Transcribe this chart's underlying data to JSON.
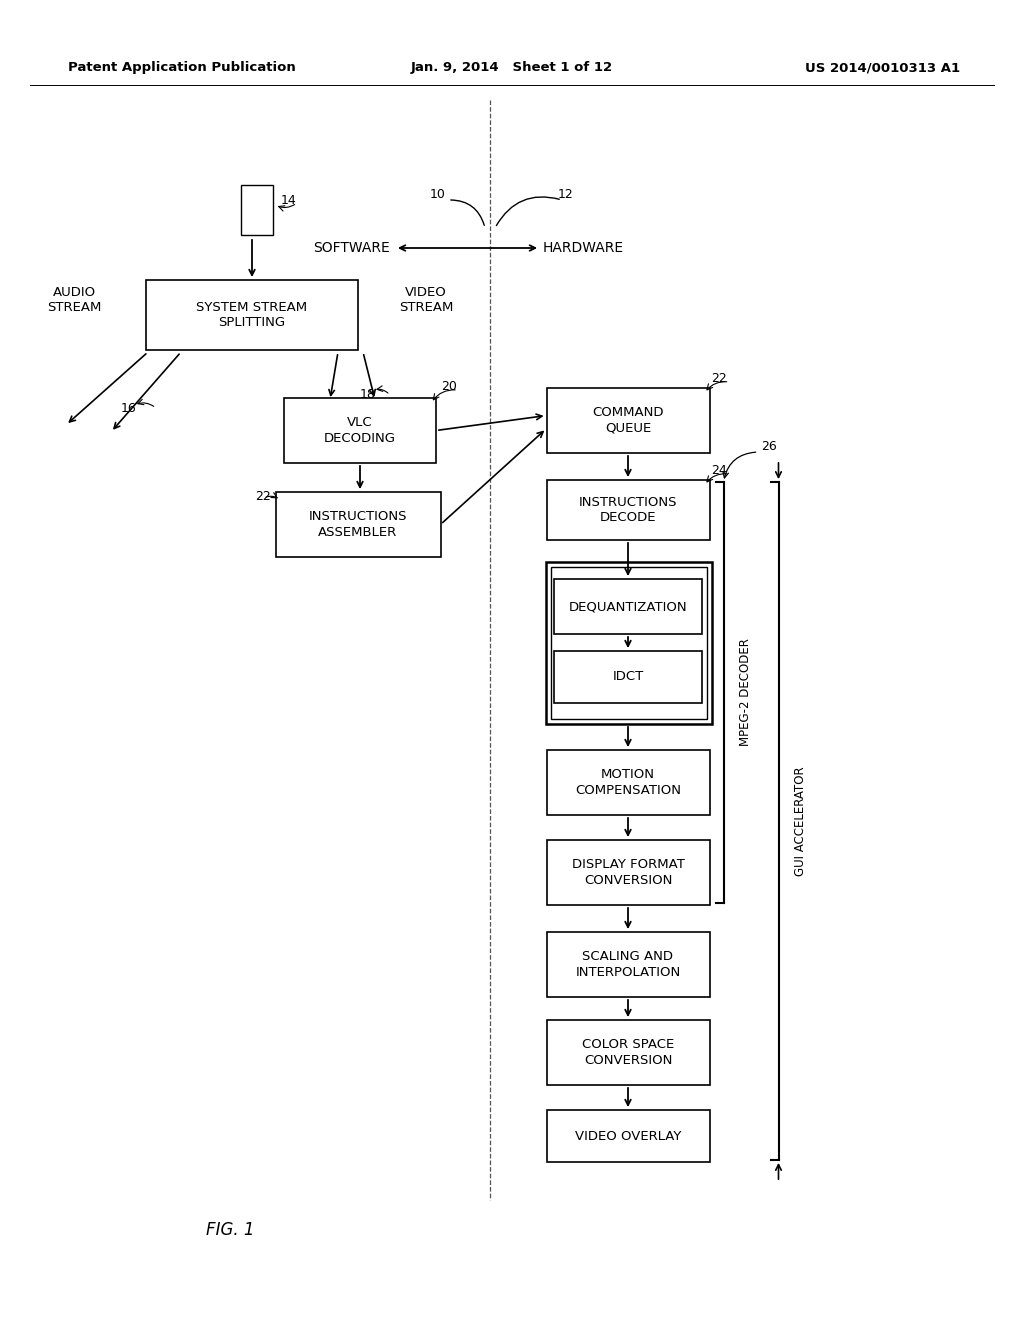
{
  "bg_color": "#ffffff",
  "header_left": "Patent Application Publication",
  "header_mid": "Jan. 9, 2014   Sheet 1 of 12",
  "header_right": "US 2014/0010313 A1",
  "footer_label": "FIG. 1"
}
